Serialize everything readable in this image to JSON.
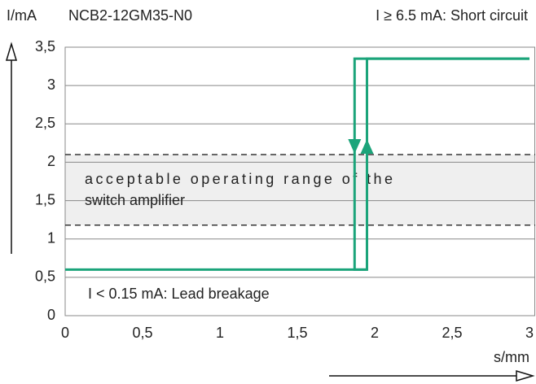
{
  "chart_data": {
    "type": "line",
    "title": "NCB2-12GM35-N0",
    "ylabel": "I/mA",
    "xlabel": "s/mm",
    "annotations": {
      "short_circuit": "I ≥ 6.5 mA: Short circuit",
      "lead_breakage": "I < 0.15 mA: Lead breakage"
    },
    "band": {
      "values": [
        1.18,
        2.1
      ],
      "label_lines": [
        "acceptable operating range of the",
        "switch amplifier"
      ],
      "color": "#efefef"
    },
    "xlim": [
      0,
      3
    ],
    "ylim": [
      0,
      3.5
    ],
    "xticks": [
      0,
      {
        "value": 0.5,
        "label": "0,5"
      },
      1,
      {
        "value": 1.5,
        "label": "1,5"
      },
      2,
      {
        "value": 2.5,
        "label": "2,5"
      },
      3
    ],
    "yticks": [
      0,
      {
        "value": 0.5,
        "label": "0,5"
      },
      1,
      {
        "value": 1.5,
        "label": "1,5"
      },
      2,
      {
        "value": 2.5,
        "label": "2,5"
      },
      3,
      {
        "value": 3.5,
        "label": "3,5"
      }
    ],
    "grid": true,
    "series": [
      {
        "color": "#1ba47a",
        "x": [
          0,
          1.95,
          1.95,
          3
        ],
        "values": [
          0.6,
          0.6,
          3.35,
          3.35
        ]
      },
      {
        "color": "#1ba47a",
        "x": [
          3,
          1.87,
          1.87,
          1.95
        ],
        "values": [
          3.35,
          3.35,
          0.6,
          0.6
        ]
      }
    ]
  }
}
